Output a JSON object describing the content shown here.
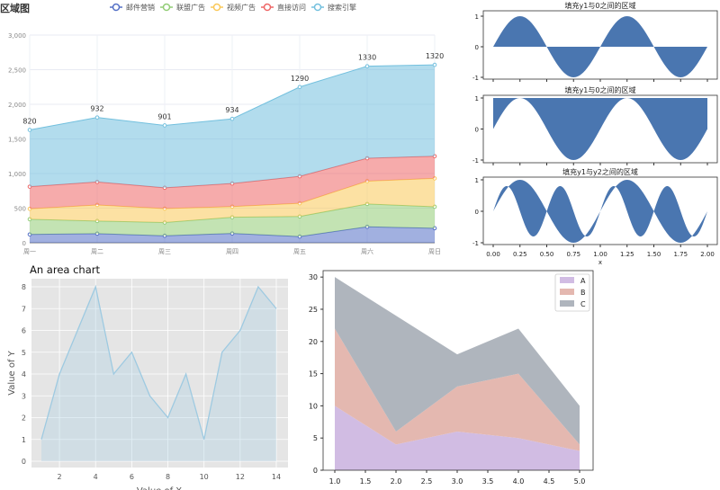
{
  "chart_data": [
    {
      "type": "area",
      "stacked": true,
      "title": "区域图",
      "categories": [
        "周一",
        "周二",
        "周三",
        "周四",
        "周五",
        "周六",
        "周日"
      ],
      "series": [
        {
          "name": "邮件营销",
          "values": [
            120,
            132,
            101,
            134,
            90,
            230,
            210
          ],
          "color": "#5470c6"
        },
        {
          "name": "联盟广告",
          "values": [
            220,
            182,
            191,
            234,
            290,
            330,
            310
          ],
          "color": "#91cc75"
        },
        {
          "name": "视频广告",
          "values": [
            150,
            232,
            201,
            154,
            190,
            330,
            410
          ],
          "color": "#fac858"
        },
        {
          "name": "直接访问",
          "values": [
            320,
            332,
            301,
            334,
            390,
            330,
            320
          ],
          "color": "#ee6666"
        },
        {
          "name": "搜索引擎",
          "values": [
            820,
            932,
            901,
            934,
            1290,
            1330,
            1320
          ],
          "color": "#73c0de"
        }
      ],
      "data_labels_series": "搜索引擎",
      "ylim": [
        0,
        3000
      ],
      "yticks": [
        "0",
        "500",
        "1,000",
        "1,500",
        "2,000",
        "2,500",
        "3,000"
      ],
      "legend": "top",
      "grid": true
    },
    {
      "type": "area",
      "subplots": [
        {
          "title": "填充y1与0之间的区域",
          "fill": "y1 = sin(2πx) to 0"
        },
        {
          "title": "填充y1与0之间的区域",
          "fill": "y1 = sin(2πx) to 1"
        },
        {
          "title": "填充y1与y2之间的区域",
          "fill": "y1 = sin(2πx) to y2 = 0.8·sin(4πx)"
        }
      ],
      "xlim": [
        0,
        2
      ],
      "ylim": [
        -1,
        1
      ],
      "xticks": [
        "0.00",
        "0.25",
        "0.50",
        "0.75",
        "1.00",
        "1.25",
        "1.50",
        "1.75",
        "2.00"
      ],
      "yticks": [
        "-1",
        "0",
        "1"
      ],
      "xlabel": "x",
      "color": "#4a76b0"
    },
    {
      "type": "area",
      "title": "An area chart",
      "xlabel": "Value of X",
      "ylabel": "Value of Y",
      "x": [
        1,
        2,
        3,
        4,
        5,
        6,
        7,
        8,
        9,
        10,
        11,
        12,
        13,
        14
      ],
      "values": [
        1,
        4,
        6,
        8,
        4,
        5,
        3,
        2,
        4,
        1,
        5,
        6,
        8,
        7
      ],
      "xticks": [
        "2",
        "4",
        "6",
        "8",
        "10",
        "12",
        "14"
      ],
      "yticks": [
        "0",
        "1",
        "2",
        "3",
        "4",
        "5",
        "6",
        "7",
        "8"
      ],
      "ylim": [
        0,
        8.4
      ],
      "color": "#9ecae1",
      "grid": true
    },
    {
      "type": "area",
      "stacked": true,
      "x": [
        1,
        2,
        3,
        4,
        5
      ],
      "series": [
        {
          "name": "A",
          "values": [
            10,
            4,
            6,
            5,
            3
          ],
          "color": "#d1bce3"
        },
        {
          "name": "B",
          "values": [
            12,
            2,
            7,
            10,
            1
          ],
          "color": "#e4b8b0"
        },
        {
          "name": "C",
          "values": [
            8,
            18,
            5,
            7,
            6
          ],
          "color": "#afb5bd"
        }
      ],
      "xticks": [
        "1.0",
        "1.5",
        "2.0",
        "2.5",
        "3.0",
        "3.5",
        "4.0",
        "4.5",
        "5.0"
      ],
      "yticks": [
        "0",
        "5",
        "10",
        "15",
        "20",
        "25",
        "30"
      ],
      "ylim": [
        0,
        31
      ],
      "legend": "top-right"
    }
  ]
}
